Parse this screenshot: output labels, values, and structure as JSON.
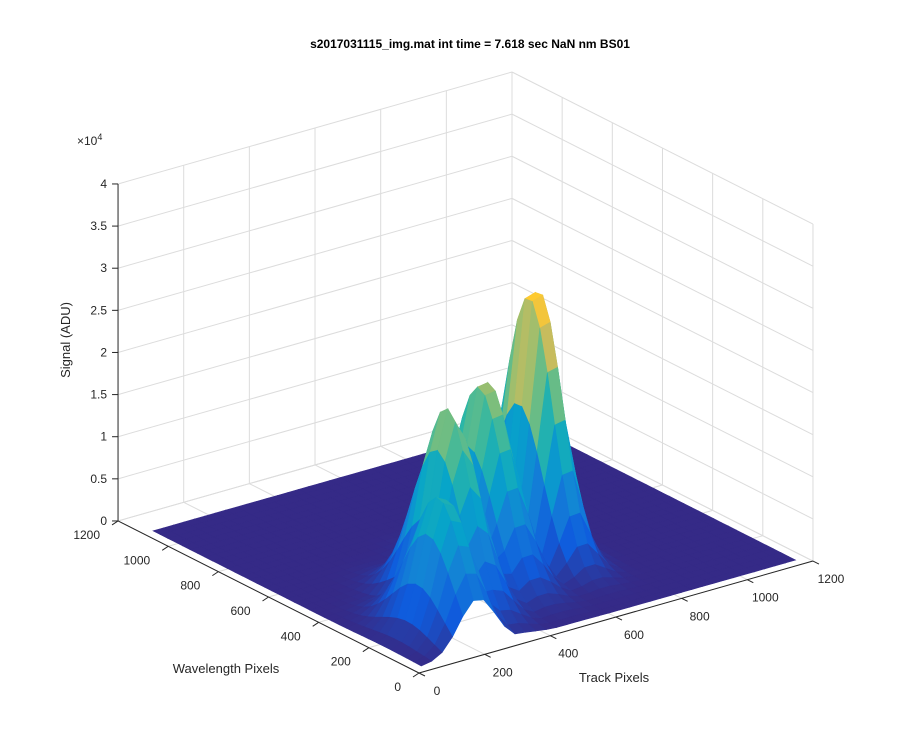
{
  "chart_data": {
    "type": "surface",
    "title": "s2017031115_img.mat int time = 7.618 sec  NaN nm BS01",
    "xlabel": "Track Pixels",
    "ylabel": "Wavelength Pixels",
    "zlabel": "Signal (ADU)",
    "z_exponent_label": "×10",
    "z_exponent_power": "4",
    "xlim": [
      0,
      1200
    ],
    "ylim": [
      0,
      1200
    ],
    "zlim": [
      0,
      40000
    ],
    "x_ticks": [
      "0",
      "200",
      "400",
      "600",
      "800",
      "1000",
      "1200"
    ],
    "y_ticks": [
      "0",
      "200",
      "400",
      "600",
      "800",
      "1000",
      "1200"
    ],
    "z_ticks": [
      "0",
      "0.5",
      "1",
      "1.5",
      "2",
      "2.5",
      "3",
      "3.5",
      "4"
    ],
    "grid": true,
    "colormap": [
      "#352a87",
      "#0f5cdd",
      "#1481d6",
      "#06a4ca",
      "#2eb7a4",
      "#87bf77",
      "#d1bb59",
      "#fec832",
      "#f9fb0e"
    ],
    "peaks": [
      {
        "track_pixel": 200,
        "wavelength_pixel": 170,
        "peak_signal": 16500
      },
      {
        "track_pixel": 320,
        "wavelength_pixel": 300,
        "peak_signal": 23500
      },
      {
        "track_pixel": 490,
        "wavelength_pixel": 380,
        "peak_signal": 24000
      },
      {
        "track_pixel": 680,
        "wavelength_pixel": 430,
        "peak_signal": 33000
      }
    ]
  }
}
